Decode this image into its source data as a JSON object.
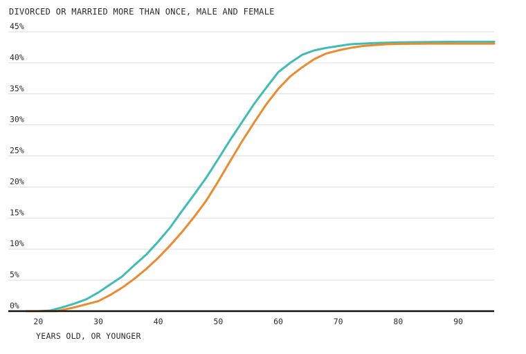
{
  "chart_data": {
    "type": "line",
    "title": "DIVORCED OR MARRIED MORE THAN ONCE, MALE AND FEMALE",
    "xlabel": "YEARS OLD, OR YOUNGER",
    "ylabel": "",
    "xlim": [
      15,
      96
    ],
    "ylim": [
      0,
      45
    ],
    "x_ticks": [
      20,
      30,
      40,
      50,
      60,
      70,
      80,
      90
    ],
    "x_tick_labels": [
      "20",
      "30",
      "40",
      "50",
      "60",
      "70",
      "80",
      "90"
    ],
    "y_ticks": [
      0,
      5,
      10,
      15,
      20,
      25,
      30,
      35,
      40,
      45
    ],
    "y_tick_labels": [
      "0%",
      "5%",
      "10%",
      "15%",
      "20%",
      "25%",
      "30%",
      "35%",
      "40%",
      "45%"
    ],
    "grid": true,
    "legend": "none",
    "series": [
      {
        "color": "#3dbdb5",
        "x": [
          18,
          20,
          22,
          24,
          26,
          28,
          30,
          32,
          34,
          36,
          38,
          40,
          42,
          44,
          46,
          48,
          50,
          52,
          54,
          56,
          58,
          60,
          62,
          64,
          66,
          68,
          70,
          72,
          74,
          76,
          78,
          80,
          85,
          90,
          96
        ],
        "y": [
          0,
          0,
          0.1,
          0.6,
          1.2,
          1.9,
          3.0,
          4.3,
          5.6,
          7.4,
          9.1,
          11.2,
          13.5,
          16.2,
          18.8,
          21.5,
          24.5,
          27.6,
          30.5,
          33.4,
          36.0,
          38.5,
          40.0,
          41.3,
          42.0,
          42.4,
          42.7,
          43.0,
          43.1,
          43.2,
          43.25,
          43.3,
          43.35,
          43.4,
          43.4
        ]
      },
      {
        "color": "#ec8a2c",
        "x": [
          18,
          20,
          22,
          23,
          24,
          26,
          28,
          30,
          32,
          34,
          36,
          38,
          40,
          42,
          44,
          46,
          48,
          50,
          52,
          54,
          56,
          58,
          60,
          62,
          64,
          66,
          68,
          70,
          72,
          74,
          76,
          78,
          80,
          85,
          90,
          96
        ],
        "y": [
          0,
          0,
          0,
          0,
          0.2,
          0.6,
          1.1,
          1.6,
          2.6,
          3.8,
          5.2,
          6.8,
          8.6,
          10.6,
          12.8,
          15.2,
          17.8,
          20.9,
          24.2,
          27.4,
          30.4,
          33.3,
          35.8,
          37.8,
          39.3,
          40.6,
          41.5,
          42.0,
          42.4,
          42.7,
          42.85,
          43.0,
          43.05,
          43.1,
          43.1,
          43.1
        ]
      }
    ]
  }
}
